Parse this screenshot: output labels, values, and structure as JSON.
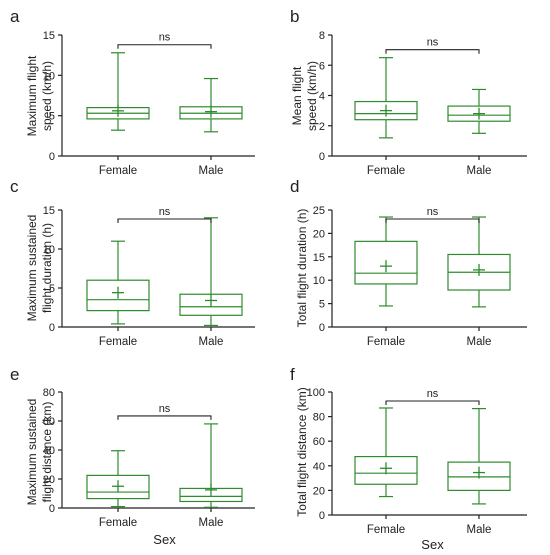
{
  "colors": {
    "box": "#2e8b2e",
    "axis": "#222222"
  },
  "chart_data": [
    {
      "panel": "a",
      "type": "box",
      "ylabel": [
        "Maximum flight",
        "speed (km/h)"
      ],
      "xlabel": "",
      "ylim": [
        0,
        15
      ],
      "yticks": [
        0,
        5,
        10,
        15
      ],
      "categories": [
        "Female",
        "Male"
      ],
      "boxes": [
        {
          "min": 3.2,
          "q1": 4.6,
          "median": 5.3,
          "q3": 6.0,
          "max": 12.8,
          "mean": 5.6
        },
        {
          "min": 3.0,
          "q1": 4.6,
          "median": 5.3,
          "q3": 6.1,
          "max": 9.6,
          "mean": 5.5
        }
      ],
      "significance": "ns"
    },
    {
      "panel": "b",
      "type": "box",
      "ylabel": [
        "Mean flight",
        "speed (km/h)"
      ],
      "xlabel": "",
      "ylim": [
        0,
        8
      ],
      "yticks": [
        0,
        2,
        4,
        6,
        8
      ],
      "categories": [
        "Female",
        "Male"
      ],
      "boxes": [
        {
          "min": 1.2,
          "q1": 2.4,
          "median": 2.8,
          "q3": 3.6,
          "max": 6.5,
          "mean": 3.0
        },
        {
          "min": 1.5,
          "q1": 2.3,
          "median": 2.7,
          "q3": 3.3,
          "max": 4.4,
          "mean": 2.8
        }
      ],
      "significance": "ns"
    },
    {
      "panel": "c",
      "type": "box",
      "ylabel": [
        "Maximum sustained",
        "flight duration (h)"
      ],
      "xlabel": "",
      "ylim": [
        0,
        15
      ],
      "yticks": [
        0,
        5,
        10,
        15
      ],
      "categories": [
        "Female",
        "Male"
      ],
      "boxes": [
        {
          "min": 0.4,
          "q1": 2.1,
          "median": 3.5,
          "q3": 6.0,
          "max": 11.0,
          "mean": 4.4
        },
        {
          "min": 0.2,
          "q1": 1.5,
          "median": 2.6,
          "q3": 4.2,
          "max": 14.0,
          "mean": 3.4
        }
      ],
      "significance": "ns"
    },
    {
      "panel": "d",
      "type": "box",
      "ylabel": [
        "Total flight duration (h)"
      ],
      "xlabel": "",
      "ylim": [
        0,
        25
      ],
      "yticks": [
        0,
        5,
        10,
        15,
        20,
        25
      ],
      "categories": [
        "Female",
        "Male"
      ],
      "boxes": [
        {
          "min": 4.5,
          "q1": 9.2,
          "median": 11.5,
          "q3": 18.3,
          "max": 23.5,
          "mean": 13.0
        },
        {
          "min": 4.3,
          "q1": 7.9,
          "median": 11.7,
          "q3": 15.5,
          "max": 23.5,
          "mean": 12.2
        }
      ],
      "significance": "ns"
    },
    {
      "panel": "e",
      "type": "box",
      "ylabel": [
        "Maximum sustained",
        "flight distance (km)"
      ],
      "xlabel": "Sex",
      "ylim": [
        0,
        80
      ],
      "yticks": [
        0,
        20,
        40,
        60,
        80
      ],
      "categories": [
        "Female",
        "Male"
      ],
      "boxes": [
        {
          "min": 1.0,
          "q1": 6.5,
          "median": 11.0,
          "q3": 22.5,
          "max": 39.5,
          "mean": 15.0
        },
        {
          "min": 0.5,
          "q1": 4.5,
          "median": 8.0,
          "q3": 13.5,
          "max": 58.0,
          "mean": 12.5
        }
      ],
      "significance": "ns"
    },
    {
      "panel": "f",
      "type": "box",
      "ylabel": [
        "Total flight distance (km)"
      ],
      "xlabel": "Sex",
      "ylim": [
        0,
        100
      ],
      "yticks": [
        0,
        20,
        40,
        60,
        80,
        100
      ],
      "categories": [
        "Female",
        "Male"
      ],
      "boxes": [
        {
          "min": 15.0,
          "q1": 25.0,
          "median": 34.0,
          "q3": 47.5,
          "max": 87.0,
          "mean": 38.0
        },
        {
          "min": 9.0,
          "q1": 20.0,
          "median": 31.0,
          "q3": 43.0,
          "max": 86.5,
          "mean": 34.5
        }
      ],
      "significance": "ns"
    }
  ]
}
